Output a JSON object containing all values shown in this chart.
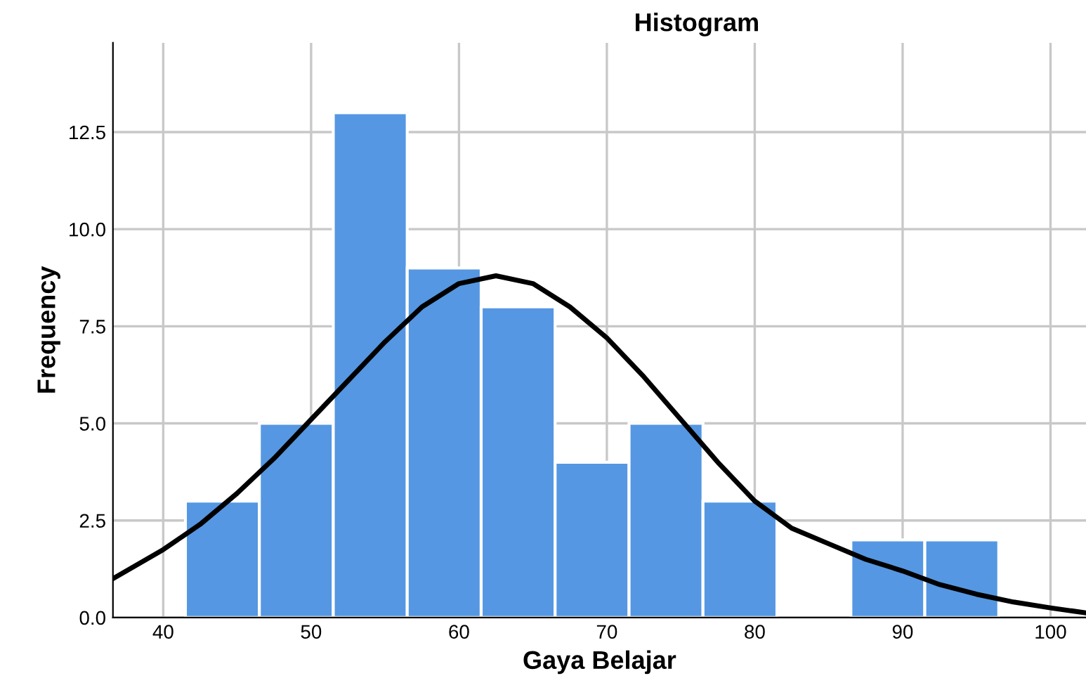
{
  "chart_data": {
    "type": "histogram",
    "title": "Histogram",
    "xlabel": "Gaya Belajar",
    "ylabel": "Frequency",
    "series": [
      {
        "color": "#5597e2",
        "bins": [
          41.5,
          46.5,
          51.5,
          56.5,
          61.5,
          66.5,
          71.5,
          76.5,
          81.5,
          86.5,
          91.5,
          96.5
        ],
        "values": [
          3,
          5,
          13,
          9,
          8,
          4,
          5,
          3,
          0,
          2,
          2
        ]
      },
      {
        "type": "line",
        "color": "#000000",
        "x": [
          36.6,
          40,
          42.5,
          45,
          47.5,
          50,
          52.5,
          55,
          57.5,
          60,
          62.5,
          65,
          67.5,
          70,
          72.5,
          75,
          77.5,
          80,
          82.5,
          85,
          87.5,
          90,
          92.5,
          95,
          97.5,
          100,
          102.4
        ],
        "values": [
          1.0,
          1.75,
          2.4,
          3.2,
          4.1,
          5.1,
          6.1,
          7.1,
          8.0,
          8.6,
          8.8,
          8.6,
          8.0,
          7.2,
          6.2,
          5.1,
          4.0,
          3.0,
          2.3,
          1.9,
          1.5,
          1.2,
          0.85,
          0.6,
          0.4,
          0.25,
          0.12
        ]
      }
    ],
    "xlim": [
      36.6,
      102.4
    ],
    "xticks": [
      40,
      50,
      60,
      70,
      80,
      90,
      100
    ],
    "ylim": [
      0,
      14.8
    ],
    "yticks": [
      {
        "value": 0,
        "label": "0.0"
      },
      {
        "value": 2.5,
        "label": "2.5"
      },
      {
        "value": 5,
        "label": "5.0"
      },
      {
        "value": 7.5,
        "label": "7.5"
      },
      {
        "value": 10,
        "label": "10.0"
      },
      {
        "value": 12.5,
        "label": "12.5"
      }
    ],
    "grid": true
  }
}
